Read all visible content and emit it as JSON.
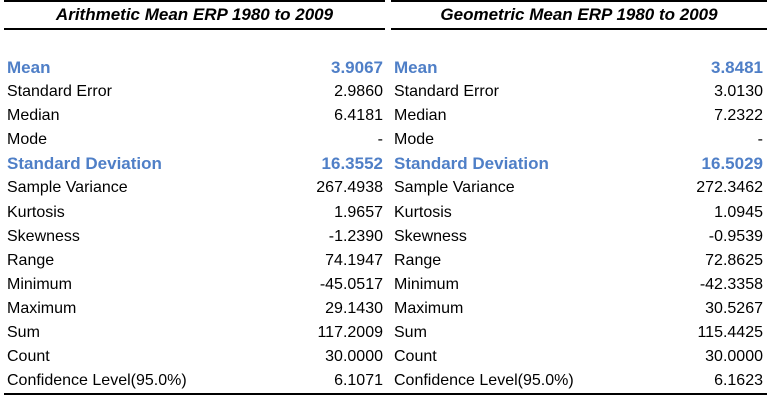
{
  "colors": {
    "highlight": "#4f7fc7",
    "text": "#000000",
    "rule": "#000000"
  },
  "left": {
    "title": "Arithmetic Mean ERP 1980 to 2009",
    "rows": [
      {
        "label": "Mean",
        "value": "3.9067",
        "highlight": true
      },
      {
        "label": "Standard Error",
        "value": "2.9860",
        "highlight": false
      },
      {
        "label": "Median",
        "value": "6.4181",
        "highlight": false
      },
      {
        "label": "Mode",
        "value": "-",
        "highlight": false
      },
      {
        "label": "Standard Deviation",
        "value": "16.3552",
        "highlight": true
      },
      {
        "label": "Sample Variance",
        "value": "267.4938",
        "highlight": false
      },
      {
        "label": "Kurtosis",
        "value": "1.9657",
        "highlight": false
      },
      {
        "label": "Skewness",
        "value": "-1.2390",
        "highlight": false
      },
      {
        "label": "Range",
        "value": "74.1947",
        "highlight": false
      },
      {
        "label": "Minimum",
        "value": "-45.0517",
        "highlight": false
      },
      {
        "label": "Maximum",
        "value": "29.1430",
        "highlight": false
      },
      {
        "label": "Sum",
        "value": "117.2009",
        "highlight": false
      },
      {
        "label": "Count",
        "value": "30.0000",
        "highlight": false
      },
      {
        "label": "Confidence Level(95.0%)",
        "value": "6.1071",
        "highlight": false
      }
    ]
  },
  "right": {
    "title": "Geometric Mean ERP 1980 to 2009",
    "rows": [
      {
        "label": "Mean",
        "value": "3.8481",
        "highlight": true
      },
      {
        "label": "Standard Error",
        "value": "3.0130",
        "highlight": false
      },
      {
        "label": "Median",
        "value": "7.2322",
        "highlight": false
      },
      {
        "label": "Mode",
        "value": "-",
        "highlight": false
      },
      {
        "label": "Standard Deviation",
        "value": "16.5029",
        "highlight": true
      },
      {
        "label": "Sample Variance",
        "value": "272.3462",
        "highlight": false
      },
      {
        "label": "Kurtosis",
        "value": "1.0945",
        "highlight": false
      },
      {
        "label": "Skewness",
        "value": "-0.9539",
        "highlight": false
      },
      {
        "label": "Range",
        "value": "72.8625",
        "highlight": false
      },
      {
        "label": "Minimum",
        "value": "-42.3358",
        "highlight": false
      },
      {
        "label": "Maximum",
        "value": "30.5267",
        "highlight": false
      },
      {
        "label": "Sum",
        "value": "115.4425",
        "highlight": false
      },
      {
        "label": "Count",
        "value": "30.0000",
        "highlight": false
      },
      {
        "label": "Confidence Level(95.0%)",
        "value": "6.1623",
        "highlight": false
      }
    ]
  }
}
